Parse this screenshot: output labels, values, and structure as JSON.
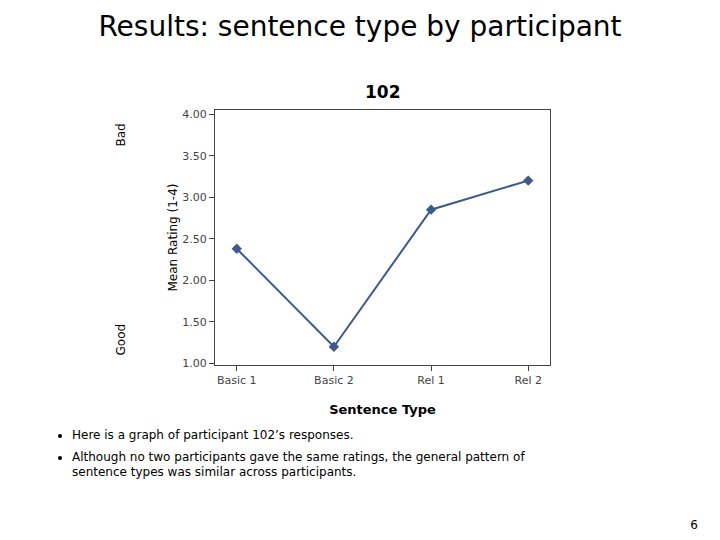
{
  "title": "Results: sentence type by participant",
  "chart_data": {
    "type": "line",
    "title": "102",
    "categories": [
      "Basic 1",
      "Basic 2",
      "Rel 1",
      "Rel 2"
    ],
    "values": [
      2.38,
      1.2,
      2.85,
      3.2
    ],
    "color": "#3D5A8A",
    "marker": "diamond",
    "line_style": "solid",
    "xlabel": "Sentence Type",
    "ylabel": "Mean Rating (1-4)",
    "annotations": [
      "Good",
      "Bad"
    ],
    "ylim": [
      0.98,
      4.05
    ],
    "yticks": [
      {
        "value": 1.0,
        "label": "1.00"
      },
      {
        "value": 1.5,
        "label": "1.50"
      },
      {
        "value": 2.0,
        "label": "2.00"
      },
      {
        "value": 2.5,
        "label": "2.50"
      },
      {
        "value": 3.0,
        "label": "3.00"
      },
      {
        "value": 3.5,
        "label": "3.50"
      },
      {
        "value": 4.0,
        "label": "4.00"
      }
    ],
    "grid": false
  },
  "bullets": [
    "Here is a graph of participant 102’s responses.",
    "Although no two participants gave the same ratings, the general pattern of\nsentence types was similar across participants."
  ],
  "page_number": "6"
}
